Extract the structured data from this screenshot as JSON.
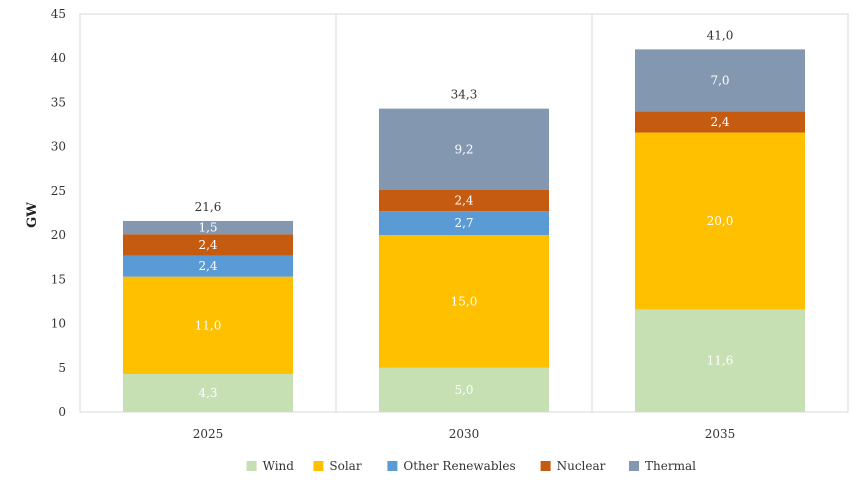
{
  "chart_data": {
    "type": "bar",
    "stacked": true,
    "title": "",
    "xlabel": "",
    "ylabel": "GW",
    "ylim": [
      0,
      45
    ],
    "yticks": [
      "0",
      "5",
      "10",
      "15",
      "20",
      "25",
      "30",
      "35",
      "40",
      "45"
    ],
    "categories": [
      "2025",
      "2030",
      "2035"
    ],
    "series": [
      {
        "name": "Wind",
        "color": "#C6E0B4",
        "label_color": "#ffffff",
        "values": [
          4.3,
          5.0,
          11.6
        ],
        "labels": [
          "4,3",
          "5,0",
          "11,6"
        ]
      },
      {
        "name": "Solar",
        "color": "#FFC000",
        "label_color": "#ffffff",
        "values": [
          11.0,
          15.0,
          20.0
        ],
        "labels": [
          "11,0",
          "15,0",
          "20,0"
        ]
      },
      {
        "name": "Other Renewables",
        "color": "#5B9BD5",
        "label_color": "#ffffff",
        "values": [
          2.4,
          2.7,
          0
        ],
        "labels": [
          "2,4",
          "2,7",
          ""
        ]
      },
      {
        "name": "Nuclear",
        "color": "#C55A11",
        "label_color": "#ffffff",
        "values": [
          2.4,
          2.4,
          2.4
        ],
        "labels": [
          "2,4",
          "2,4",
          "2,4"
        ]
      },
      {
        "name": "Thermal",
        "color": "#8497B0",
        "label_color": "#ffffff",
        "values": [
          1.5,
          9.2,
          7.0
        ],
        "labels": [
          "1,5",
          "9,2",
          "7,0"
        ]
      }
    ],
    "totals": [
      21.6,
      34.3,
      41.0
    ],
    "total_labels": [
      "21,6",
      "34,3",
      "41,0"
    ],
    "grid": {
      "horizontal": false,
      "vertical_separators": true
    },
    "legend_position": "bottom"
  }
}
